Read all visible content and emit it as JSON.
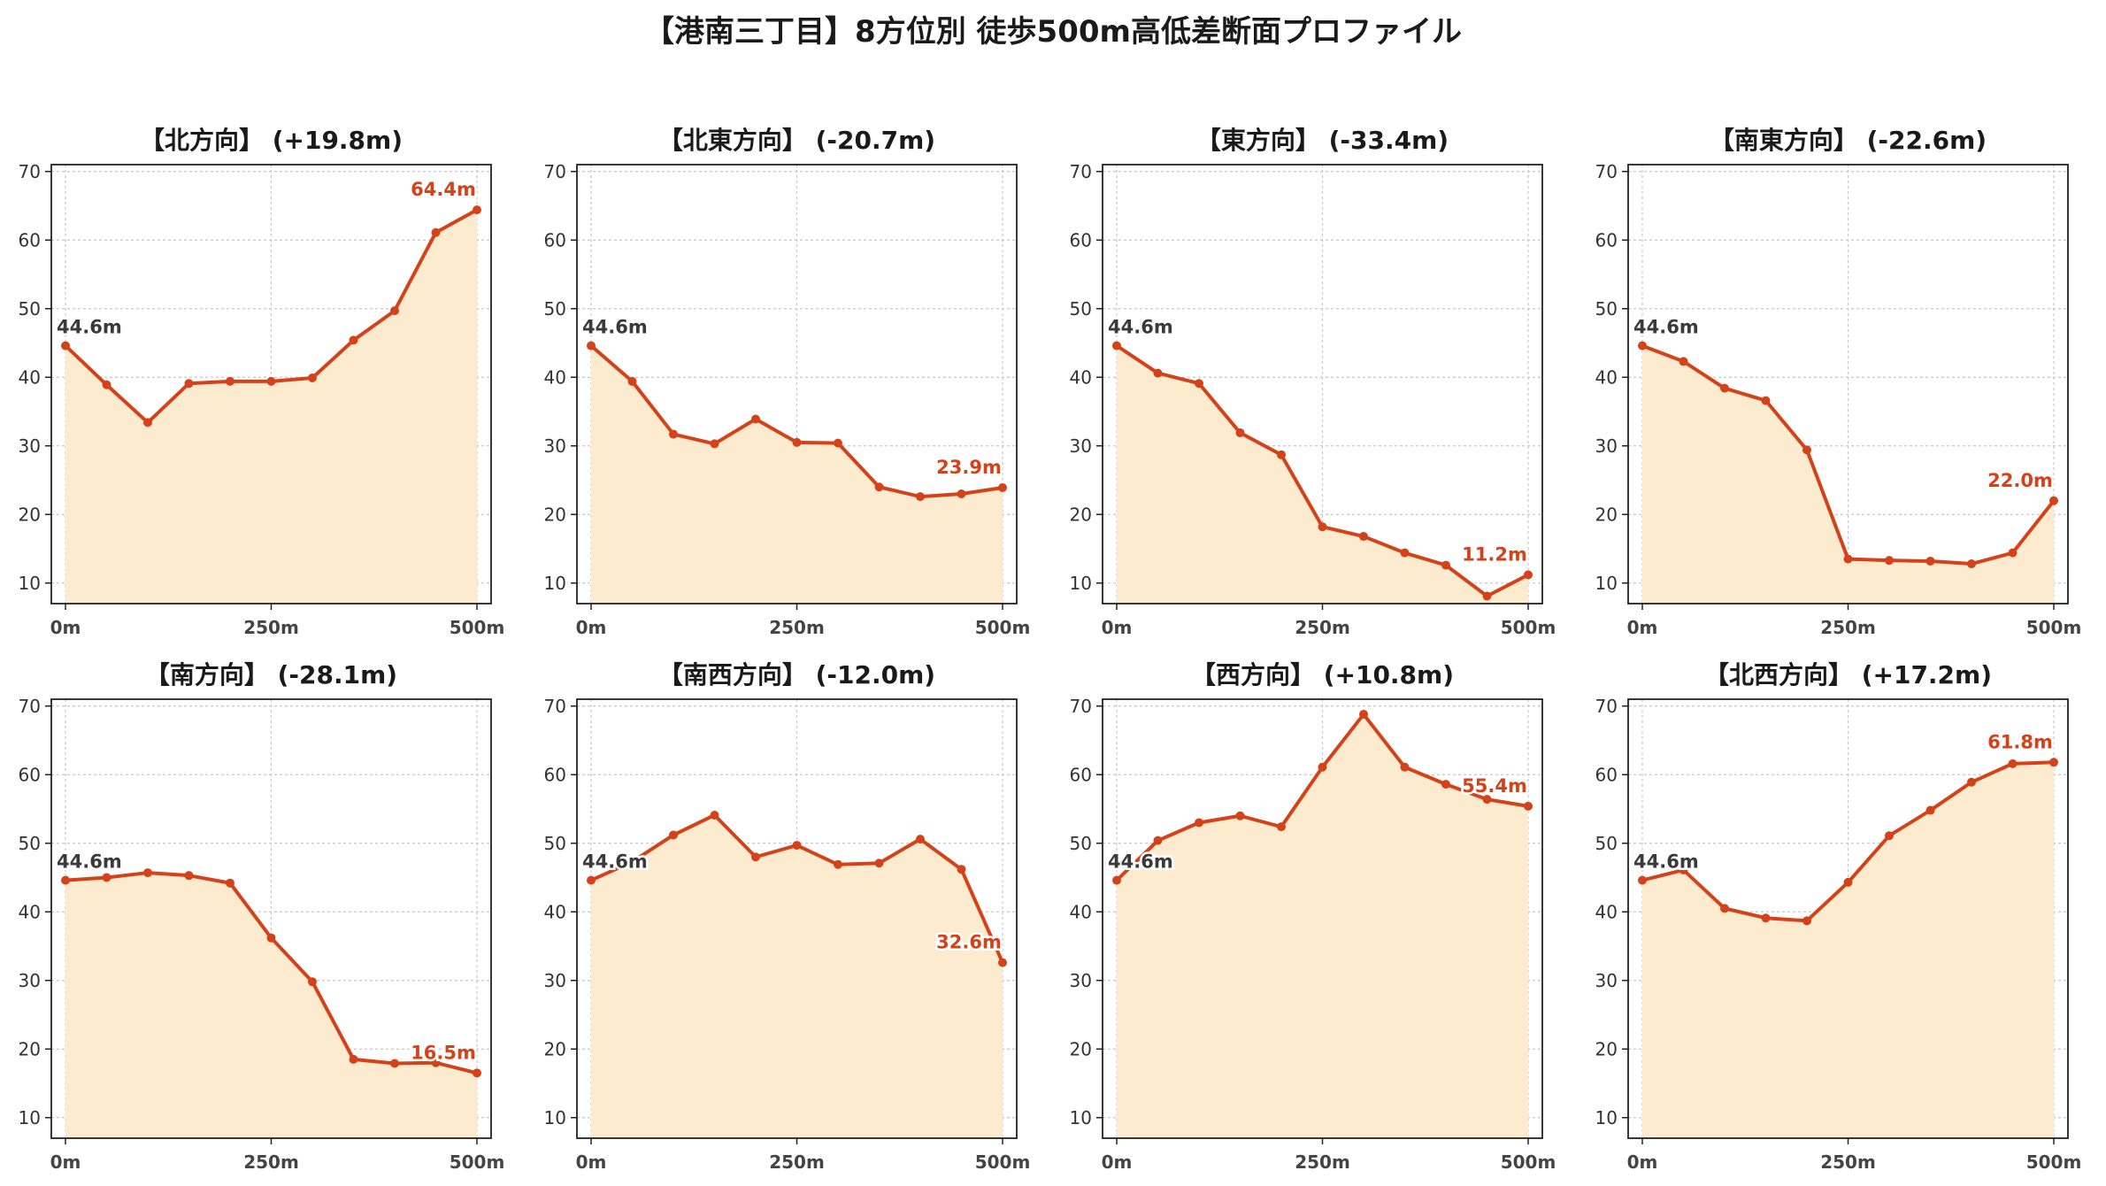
{
  "title": "【港南三丁目】8方位別 徒歩500m高低差断面プロファイル",
  "colors": {
    "line": "#d4421a",
    "fill": "#fdebd0",
    "grid": "#c8c8c8",
    "end_label": "#d4421a",
    "start_label": "#3a3a3a"
  },
  "chart_data": [
    {
      "type": "area",
      "title": "【北方向】 (+19.8m)",
      "x": [
        0,
        50,
        100,
        150,
        200,
        250,
        300,
        350,
        400,
        450,
        500
      ],
      "values": [
        44.6,
        38.9,
        33.4,
        39.1,
        39.4,
        39.4,
        39.9,
        45.4,
        49.7,
        61.1,
        64.4
      ],
      "start_label": "44.6m",
      "end_label": "64.4m",
      "xticks": [
        "0m",
        "250m",
        "500m"
      ],
      "yticks": [
        "10",
        "20",
        "30",
        "40",
        "50",
        "60",
        "70"
      ],
      "xlim": [
        0,
        500
      ],
      "ylim": [
        7,
        71
      ],
      "grid": true
    },
    {
      "type": "area",
      "title": "【北東方向】 (-20.7m)",
      "x": [
        0,
        50,
        100,
        150,
        200,
        250,
        300,
        350,
        400,
        450,
        500
      ],
      "values": [
        44.6,
        39.4,
        31.7,
        30.3,
        33.9,
        30.5,
        30.4,
        24.0,
        22.6,
        23.0,
        23.9
      ],
      "start_label": "44.6m",
      "end_label": "23.9m",
      "xticks": [
        "0m",
        "250m",
        "500m"
      ],
      "yticks": [
        "10",
        "20",
        "30",
        "40",
        "50",
        "60",
        "70"
      ],
      "xlim": [
        0,
        500
      ],
      "ylim": [
        7,
        71
      ],
      "grid": true
    },
    {
      "type": "area",
      "title": "【東方向】 (-33.4m)",
      "x": [
        0,
        50,
        100,
        150,
        200,
        250,
        300,
        350,
        400,
        450,
        500
      ],
      "values": [
        44.6,
        40.6,
        39.1,
        31.9,
        28.7,
        18.2,
        16.8,
        14.4,
        12.6,
        8.1,
        11.2
      ],
      "start_label": "44.6m",
      "end_label": "11.2m",
      "xticks": [
        "0m",
        "250m",
        "500m"
      ],
      "yticks": [
        "10",
        "20",
        "30",
        "40",
        "50",
        "60",
        "70"
      ],
      "xlim": [
        0,
        500
      ],
      "ylim": [
        7,
        71
      ],
      "grid": true
    },
    {
      "type": "area",
      "title": "【南東方向】 (-22.6m)",
      "x": [
        0,
        50,
        100,
        150,
        200,
        250,
        300,
        350,
        400,
        450,
        500
      ],
      "values": [
        44.6,
        42.3,
        38.4,
        36.6,
        29.4,
        13.5,
        13.3,
        13.2,
        12.8,
        14.4,
        22.0
      ],
      "start_label": "44.6m",
      "end_label": "22.0m",
      "xticks": [
        "0m",
        "250m",
        "500m"
      ],
      "yticks": [
        "10",
        "20",
        "30",
        "40",
        "50",
        "60",
        "70"
      ],
      "xlim": [
        0,
        500
      ],
      "ylim": [
        7,
        71
      ],
      "grid": true
    },
    {
      "type": "area",
      "title": "【南方向】 (-28.1m)",
      "x": [
        0,
        50,
        100,
        150,
        200,
        250,
        300,
        350,
        400,
        450,
        500
      ],
      "values": [
        44.6,
        45.0,
        45.7,
        45.3,
        44.2,
        36.2,
        29.8,
        18.5,
        17.9,
        18.0,
        16.5
      ],
      "start_label": "44.6m",
      "end_label": "16.5m",
      "xticks": [
        "0m",
        "250m",
        "500m"
      ],
      "yticks": [
        "10",
        "20",
        "30",
        "40",
        "50",
        "60",
        "70"
      ],
      "xlim": [
        0,
        500
      ],
      "ylim": [
        7,
        71
      ],
      "grid": true
    },
    {
      "type": "area",
      "title": "【南西方向】 (-12.0m)",
      "x": [
        0,
        50,
        100,
        150,
        200,
        250,
        300,
        350,
        400,
        450,
        500
      ],
      "values": [
        44.6,
        47.3,
        51.2,
        54.1,
        48.0,
        49.7,
        46.9,
        47.1,
        50.6,
        46.2,
        32.6
      ],
      "start_label": "44.6m",
      "end_label": "32.6m",
      "xticks": [
        "0m",
        "250m",
        "500m"
      ],
      "yticks": [
        "10",
        "20",
        "30",
        "40",
        "50",
        "60",
        "70"
      ],
      "xlim": [
        0,
        500
      ],
      "ylim": [
        7,
        71
      ],
      "grid": true
    },
    {
      "type": "area",
      "title": "【西方向】 (+10.8m)",
      "x": [
        0,
        50,
        100,
        150,
        200,
        250,
        300,
        350,
        400,
        450,
        500
      ],
      "values": [
        44.6,
        50.4,
        53.0,
        54.0,
        52.4,
        61.1,
        68.8,
        61.1,
        58.6,
        56.4,
        55.4
      ],
      "start_label": "44.6m",
      "end_label": "55.4m",
      "xticks": [
        "0m",
        "250m",
        "500m"
      ],
      "yticks": [
        "10",
        "20",
        "30",
        "40",
        "50",
        "60",
        "70"
      ],
      "xlim": [
        0,
        500
      ],
      "ylim": [
        7,
        71
      ],
      "grid": true
    },
    {
      "type": "area",
      "title": "【北西方向】 (+17.2m)",
      "x": [
        0,
        50,
        100,
        150,
        200,
        250,
        300,
        350,
        400,
        450,
        500
      ],
      "values": [
        44.6,
        46.1,
        40.5,
        39.1,
        38.7,
        44.3,
        51.1,
        54.8,
        58.9,
        61.6,
        61.8
      ],
      "start_label": "44.6m",
      "end_label": "61.8m",
      "xticks": [
        "0m",
        "250m",
        "500m"
      ],
      "yticks": [
        "10",
        "20",
        "30",
        "40",
        "50",
        "60",
        "70"
      ],
      "xlim": [
        0,
        500
      ],
      "ylim": [
        7,
        71
      ],
      "grid": true
    }
  ]
}
